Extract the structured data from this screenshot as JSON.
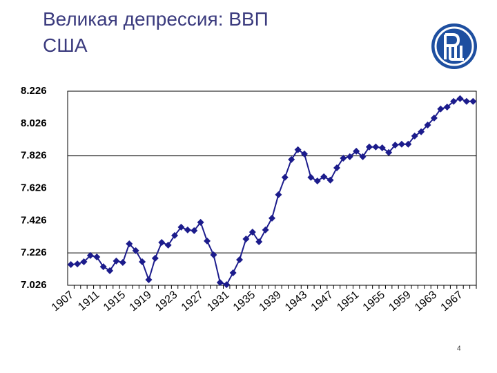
{
  "title": "Великая депрессия: ВВП США",
  "page_number": "4",
  "chart_data": {
    "type": "line",
    "color": "#1c1c8c",
    "categories": [
      "1907",
      null,
      null,
      null,
      "1911",
      null,
      null,
      null,
      "1915",
      null,
      null,
      null,
      "1919",
      null,
      null,
      null,
      "1923",
      null,
      null,
      null,
      "1927",
      null,
      null,
      null,
      "1931",
      null,
      null,
      null,
      "1935",
      null,
      null,
      null,
      "1939",
      null,
      null,
      null,
      "1943",
      null,
      null,
      null,
      "1947",
      null,
      null,
      null,
      "1951",
      null,
      null,
      null,
      "1955",
      null,
      null,
      null,
      "1959",
      null,
      null,
      null,
      "1963",
      null,
      null,
      null,
      "1967",
      null,
      null
    ],
    "values": [
      7.154,
      7.158,
      7.171,
      7.21,
      7.201,
      7.141,
      7.116,
      7.176,
      7.167,
      7.282,
      7.24,
      7.171,
      7.06,
      7.193,
      7.291,
      7.274,
      7.334,
      7.385,
      7.368,
      7.364,
      7.415,
      7.3,
      7.214,
      7.043,
      7.03,
      7.103,
      7.184,
      7.312,
      7.355,
      7.295,
      7.368,
      7.441,
      7.586,
      7.693,
      7.804,
      7.864,
      7.838,
      7.693,
      7.671,
      7.697,
      7.676,
      7.752,
      7.812,
      7.821,
      7.855,
      7.821,
      7.881,
      7.881,
      7.876,
      7.847,
      7.893,
      7.898,
      7.898,
      7.949,
      7.975,
      8.017,
      8.06,
      8.116,
      8.128,
      8.163,
      8.18,
      8.163,
      8.163
    ],
    "ylim": [
      7.026,
      8.226
    ],
    "yticks": [
      7.026,
      7.226,
      7.426,
      7.626,
      7.826,
      8.026,
      8.226
    ],
    "grid_yticks": [
      7.226,
      7.826
    ]
  }
}
